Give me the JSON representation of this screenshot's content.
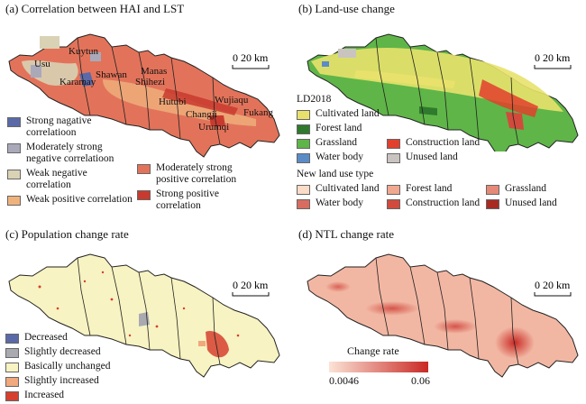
{
  "panel_a": {
    "title": "(a) Correlation between HAI and LST",
    "scale": "0  20 km",
    "cities": [
      "Usu",
      "Kuytun",
      "Shawan",
      "Manas",
      "Karamay",
      "Shihezi",
      "Hutubi",
      "Changji",
      "Wujiaqu",
      "Fukang",
      "Urumqi"
    ],
    "legend": [
      {
        "label": "Strong nagative correlatioon",
        "color": "#5a6aa8"
      },
      {
        "label": "Moderately strong negative correlatioon",
        "color": "#a9a9b9"
      },
      {
        "label": "Weak negative correlation",
        "color": "#d9d2b4"
      },
      {
        "label": "Weak positive correlation",
        "color": "#f0b27d"
      },
      {
        "label": "Moderately strong positive correlation",
        "color": "#e2735a"
      },
      {
        "label": "Strong positive correlation",
        "color": "#c83a2e"
      }
    ]
  },
  "panel_b": {
    "title": "(b) Land-use change",
    "scale": "0  20 km",
    "ld_heading": "LD2018",
    "ld_items": [
      {
        "label": "Cultivated land",
        "color": "#e8e26c"
      },
      {
        "label": "Forest land",
        "color": "#2f7a2c"
      },
      {
        "label": "Grassland",
        "color": "#5fb548"
      },
      {
        "label": "Construction land",
        "color": "#e2402d"
      },
      {
        "label": "Water body",
        "color": "#5b8cc6"
      },
      {
        "label": "Unused land",
        "color": "#c9c4c0"
      }
    ],
    "new_heading": "New land use type",
    "new_items": [
      {
        "label": "Cultivated land",
        "color": "#fbdcc8"
      },
      {
        "label": "Forest land",
        "color": "#f0a890"
      },
      {
        "label": "Grassland",
        "color": "#e58a78"
      },
      {
        "label": "Water body",
        "color": "#d96c60"
      },
      {
        "label": "Construction land",
        "color": "#d24a3c"
      },
      {
        "label": "Unused land",
        "color": "#a82a22"
      }
    ]
  },
  "panel_c": {
    "title": "(c) Population change rate",
    "scale": "0  20 km",
    "legend": [
      {
        "label": "Decreased",
        "color": "#5a6aa8"
      },
      {
        "label": "Slightly decreased",
        "color": "#a9a9b0"
      },
      {
        "label": "Basically unchanged",
        "color": "#f7f3c2"
      },
      {
        "label": "Slightly increased",
        "color": "#f0a87c"
      },
      {
        "label": "Increased",
        "color": "#d6402f"
      }
    ]
  },
  "panel_d": {
    "title": "(d) NTL change rate",
    "scale": "0  20 km",
    "colorbar_title": "Change rate",
    "colorbar_min": "0.0046",
    "colorbar_max": "0.06",
    "colorbar_colors": [
      "#fbe3d6",
      "#c92a25"
    ]
  }
}
